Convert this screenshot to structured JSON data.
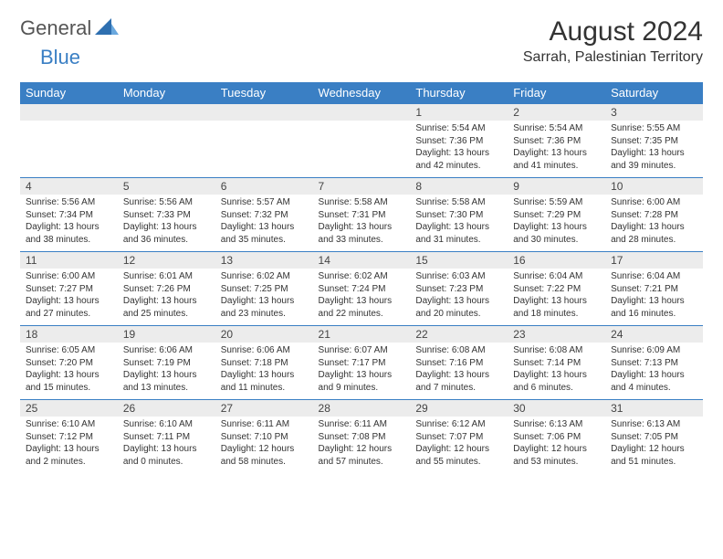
{
  "brand": {
    "part1": "General",
    "part2": "Blue"
  },
  "title": "August 2024",
  "location": "Sarrah, Palestinian Territory",
  "colors": {
    "header_bg": "#3a7fc4",
    "header_text": "#ffffff",
    "daynum_bg": "#ececec",
    "cell_border": "#3a7fc4",
    "body_text": "#333333",
    "page_bg": "#ffffff"
  },
  "typography": {
    "title_fontsize": 30,
    "location_fontsize": 16,
    "header_fontsize": 13,
    "daynum_fontsize": 12,
    "body_fontsize": 10
  },
  "dayHeaders": [
    "Sunday",
    "Monday",
    "Tuesday",
    "Wednesday",
    "Thursday",
    "Friday",
    "Saturday"
  ],
  "weeks": [
    [
      {
        "num": "",
        "sunrise": "",
        "sunset": "",
        "daylight": ""
      },
      {
        "num": "",
        "sunrise": "",
        "sunset": "",
        "daylight": ""
      },
      {
        "num": "",
        "sunrise": "",
        "sunset": "",
        "daylight": ""
      },
      {
        "num": "",
        "sunrise": "",
        "sunset": "",
        "daylight": ""
      },
      {
        "num": "1",
        "sunrise": "Sunrise: 5:54 AM",
        "sunset": "Sunset: 7:36 PM",
        "daylight": "Daylight: 13 hours and 42 minutes."
      },
      {
        "num": "2",
        "sunrise": "Sunrise: 5:54 AM",
        "sunset": "Sunset: 7:36 PM",
        "daylight": "Daylight: 13 hours and 41 minutes."
      },
      {
        "num": "3",
        "sunrise": "Sunrise: 5:55 AM",
        "sunset": "Sunset: 7:35 PM",
        "daylight": "Daylight: 13 hours and 39 minutes."
      }
    ],
    [
      {
        "num": "4",
        "sunrise": "Sunrise: 5:56 AM",
        "sunset": "Sunset: 7:34 PM",
        "daylight": "Daylight: 13 hours and 38 minutes."
      },
      {
        "num": "5",
        "sunrise": "Sunrise: 5:56 AM",
        "sunset": "Sunset: 7:33 PM",
        "daylight": "Daylight: 13 hours and 36 minutes."
      },
      {
        "num": "6",
        "sunrise": "Sunrise: 5:57 AM",
        "sunset": "Sunset: 7:32 PM",
        "daylight": "Daylight: 13 hours and 35 minutes."
      },
      {
        "num": "7",
        "sunrise": "Sunrise: 5:58 AM",
        "sunset": "Sunset: 7:31 PM",
        "daylight": "Daylight: 13 hours and 33 minutes."
      },
      {
        "num": "8",
        "sunrise": "Sunrise: 5:58 AM",
        "sunset": "Sunset: 7:30 PM",
        "daylight": "Daylight: 13 hours and 31 minutes."
      },
      {
        "num": "9",
        "sunrise": "Sunrise: 5:59 AM",
        "sunset": "Sunset: 7:29 PM",
        "daylight": "Daylight: 13 hours and 30 minutes."
      },
      {
        "num": "10",
        "sunrise": "Sunrise: 6:00 AM",
        "sunset": "Sunset: 7:28 PM",
        "daylight": "Daylight: 13 hours and 28 minutes."
      }
    ],
    [
      {
        "num": "11",
        "sunrise": "Sunrise: 6:00 AM",
        "sunset": "Sunset: 7:27 PM",
        "daylight": "Daylight: 13 hours and 27 minutes."
      },
      {
        "num": "12",
        "sunrise": "Sunrise: 6:01 AM",
        "sunset": "Sunset: 7:26 PM",
        "daylight": "Daylight: 13 hours and 25 minutes."
      },
      {
        "num": "13",
        "sunrise": "Sunrise: 6:02 AM",
        "sunset": "Sunset: 7:25 PM",
        "daylight": "Daylight: 13 hours and 23 minutes."
      },
      {
        "num": "14",
        "sunrise": "Sunrise: 6:02 AM",
        "sunset": "Sunset: 7:24 PM",
        "daylight": "Daylight: 13 hours and 22 minutes."
      },
      {
        "num": "15",
        "sunrise": "Sunrise: 6:03 AM",
        "sunset": "Sunset: 7:23 PM",
        "daylight": "Daylight: 13 hours and 20 minutes."
      },
      {
        "num": "16",
        "sunrise": "Sunrise: 6:04 AM",
        "sunset": "Sunset: 7:22 PM",
        "daylight": "Daylight: 13 hours and 18 minutes."
      },
      {
        "num": "17",
        "sunrise": "Sunrise: 6:04 AM",
        "sunset": "Sunset: 7:21 PM",
        "daylight": "Daylight: 13 hours and 16 minutes."
      }
    ],
    [
      {
        "num": "18",
        "sunrise": "Sunrise: 6:05 AM",
        "sunset": "Sunset: 7:20 PM",
        "daylight": "Daylight: 13 hours and 15 minutes."
      },
      {
        "num": "19",
        "sunrise": "Sunrise: 6:06 AM",
        "sunset": "Sunset: 7:19 PM",
        "daylight": "Daylight: 13 hours and 13 minutes."
      },
      {
        "num": "20",
        "sunrise": "Sunrise: 6:06 AM",
        "sunset": "Sunset: 7:18 PM",
        "daylight": "Daylight: 13 hours and 11 minutes."
      },
      {
        "num": "21",
        "sunrise": "Sunrise: 6:07 AM",
        "sunset": "Sunset: 7:17 PM",
        "daylight": "Daylight: 13 hours and 9 minutes."
      },
      {
        "num": "22",
        "sunrise": "Sunrise: 6:08 AM",
        "sunset": "Sunset: 7:16 PM",
        "daylight": "Daylight: 13 hours and 7 minutes."
      },
      {
        "num": "23",
        "sunrise": "Sunrise: 6:08 AM",
        "sunset": "Sunset: 7:14 PM",
        "daylight": "Daylight: 13 hours and 6 minutes."
      },
      {
        "num": "24",
        "sunrise": "Sunrise: 6:09 AM",
        "sunset": "Sunset: 7:13 PM",
        "daylight": "Daylight: 13 hours and 4 minutes."
      }
    ],
    [
      {
        "num": "25",
        "sunrise": "Sunrise: 6:10 AM",
        "sunset": "Sunset: 7:12 PM",
        "daylight": "Daylight: 13 hours and 2 minutes."
      },
      {
        "num": "26",
        "sunrise": "Sunrise: 6:10 AM",
        "sunset": "Sunset: 7:11 PM",
        "daylight": "Daylight: 13 hours and 0 minutes."
      },
      {
        "num": "27",
        "sunrise": "Sunrise: 6:11 AM",
        "sunset": "Sunset: 7:10 PM",
        "daylight": "Daylight: 12 hours and 58 minutes."
      },
      {
        "num": "28",
        "sunrise": "Sunrise: 6:11 AM",
        "sunset": "Sunset: 7:08 PM",
        "daylight": "Daylight: 12 hours and 57 minutes."
      },
      {
        "num": "29",
        "sunrise": "Sunrise: 6:12 AM",
        "sunset": "Sunset: 7:07 PM",
        "daylight": "Daylight: 12 hours and 55 minutes."
      },
      {
        "num": "30",
        "sunrise": "Sunrise: 6:13 AM",
        "sunset": "Sunset: 7:06 PM",
        "daylight": "Daylight: 12 hours and 53 minutes."
      },
      {
        "num": "31",
        "sunrise": "Sunrise: 6:13 AM",
        "sunset": "Sunset: 7:05 PM",
        "daylight": "Daylight: 12 hours and 51 minutes."
      }
    ]
  ]
}
